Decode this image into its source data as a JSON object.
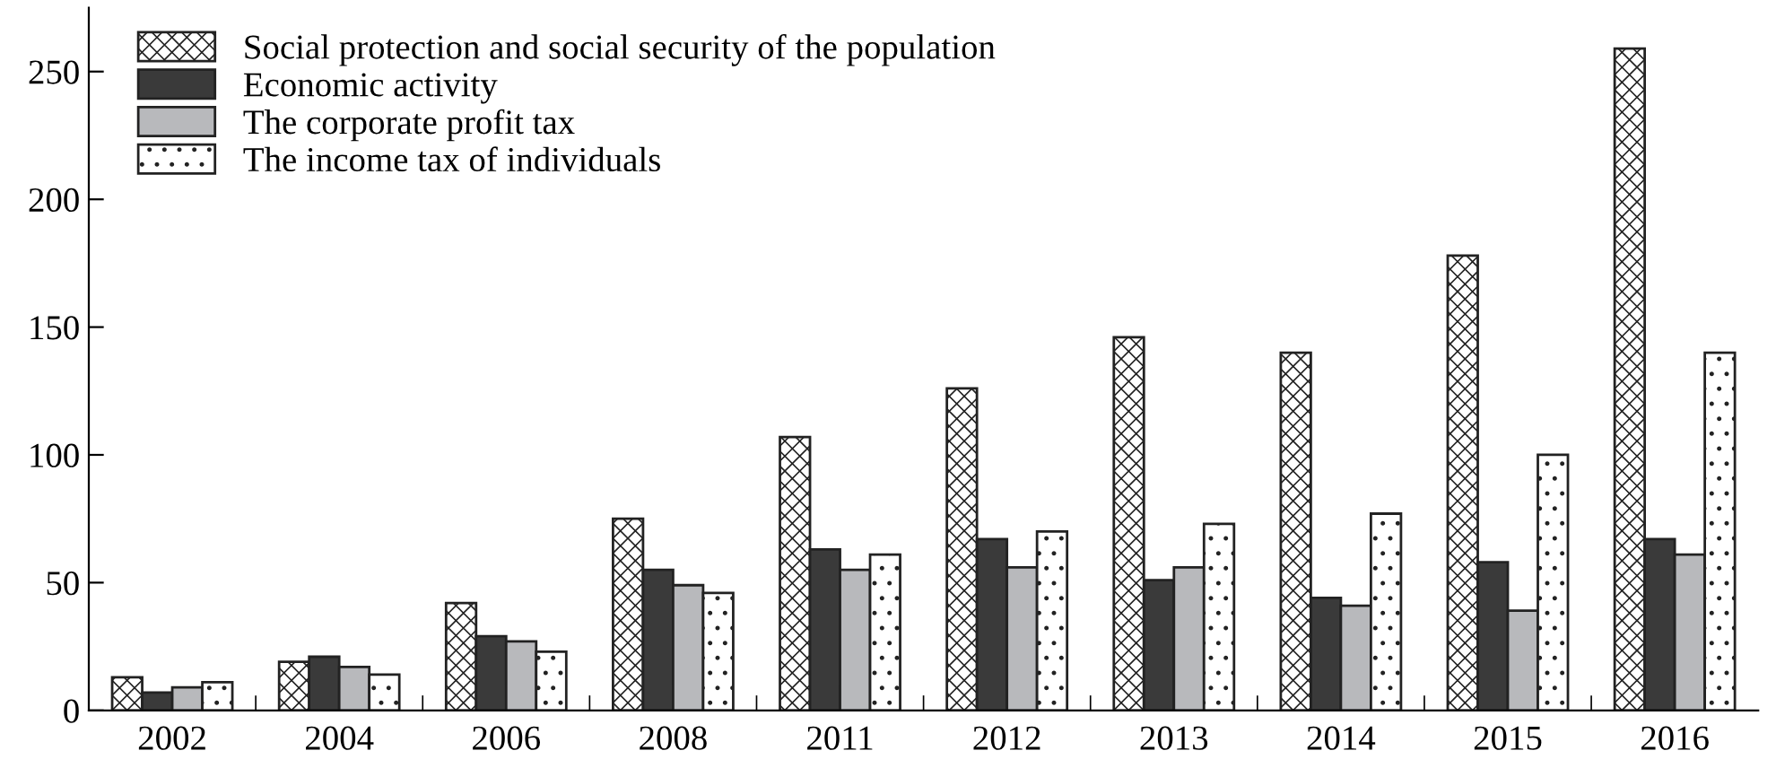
{
  "chart_data": {
    "type": "bar",
    "categories": [
      "2002",
      "2004",
      "2006",
      "2008",
      "2011",
      "2012",
      "2013",
      "2014",
      "2015",
      "2016"
    ],
    "series": [
      {
        "name": "Social protection and social security of the population",
        "color": "#222222",
        "values": [
          13,
          19,
          42,
          75,
          107,
          126,
          146,
          140,
          178,
          259
        ]
      },
      {
        "name": "Economic activity",
        "color": "#3a3a3a",
        "values": [
          7,
          21,
          29,
          55,
          63,
          67,
          51,
          44,
          58,
          67
        ]
      },
      {
        "name": "The corporate profit tax",
        "color": "#b8b9bc",
        "values": [
          9,
          17,
          27,
          49,
          55,
          56,
          56,
          41,
          39,
          61
        ]
      },
      {
        "name": "The income tax of individuals",
        "color": "#222222",
        "values": [
          11,
          14,
          23,
          46,
          61,
          70,
          73,
          77,
          100,
          140
        ]
      }
    ],
    "ylim": [
      0,
      275
    ],
    "yticks": [
      0,
      50,
      100,
      150,
      200,
      250
    ],
    "grid": false,
    "legend": "top left"
  }
}
